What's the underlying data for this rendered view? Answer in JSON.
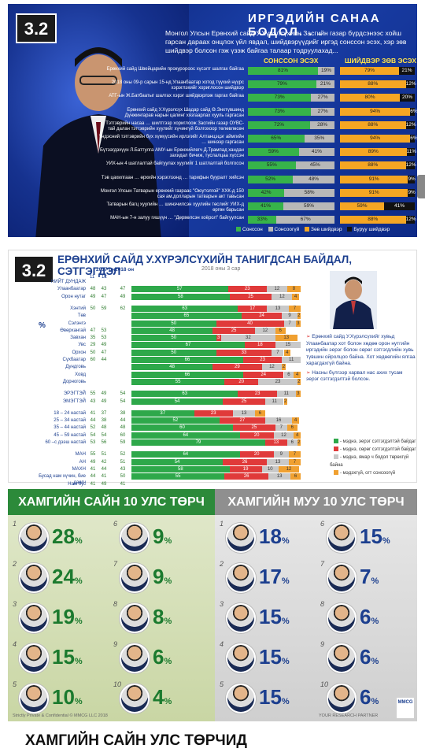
{
  "panel1": {
    "badge": "3.2",
    "title": "ИРГЭДИЙН САНАА БОДОЛ. . .",
    "description": "Монгол Улсын Ерөнхий сайд У.Хүрэлсүхийн Засгийн газар бүрдсэнээс хойш гарсан дараах онцлох үйл явдал, шийдвэрүүдийг иргэд сонссон эсэх, хэр зөв шийдвэр болсон гэж үзэж байгаа талаар тодруулахад...",
    "col_left": "СОНССОН ЭСЭХ",
    "col_right": "ШИЙДВЭР ЗӨВ ЭСЭХ",
    "legend": [
      "Сонссон",
      "Сонсоогүй",
      "Зөв шийдвэр",
      "Буруу шийдвэр"
    ],
    "colors": {
      "heard": "#37b34a",
      "notheard": "#b8b8b8",
      "right": "#f5a623",
      "wrong": "#111111"
    }
  },
  "chart_data": [
    {
      "type": "bar",
      "title": "ИРГЭДИЙН САНАА БОДОЛ. . .",
      "categories": [
        "Ерөнхий сайд Швейцарийн прокуророос хүсэлт шалгах байгаа",
        "2018 оны 09-р сарын 15-нд Улаанбаатар хотод түүхий нүүрс хэрэглэхийг хориглосон шийдвэр",
        "АТГ-ын Ж.Батбаатыг шалгах хэрэг шийдвэрлэж гаргах байгаа",
        "Ерөнхий сайд У.Хүрэлсүх Шадар сайд Ө.Энхтүвшинд Дүнжингарав нарын цалинг хязгаарлах хууль гаргасан",
        "Тэтгэврийн насаа … шилтгээр хориглоож Засгийн газар ОУВС-тай далан тэтгэврийн хуулийг хүчингүй болгохоор төлөвлөсөн",
        "Үндэсний тэтгэврийн бүх хүмүүсийн ирлэгийг Алтанцэцэг аймгийн … шинээр гаргасан",
        "Бүтээгдэхүүн Л.Баттулга АМУ-ын Ерөнхийлөгч Д.Трампад хандан захидал бичиж, туслалцаа хүссэн",
        "УИХ-ын 4 шатлалтай байгуулах хуулийг 1 шатлалтай болгосон",
        "Тэв цахилгаан … өрхийн хэрэглээнд … тарифын бууралт хийсэн",
        "Монгол Улсын Татварын ерөнхий газраас \"Оюутолгой\" ХХК-д 150 сая ам.долларын татварын акт тавьсан",
        "Татварын багц хуулийн … шинэчилсэн хуулийн төслийг УИХ-д өргөн барьсан",
        "МАН-ын 7-н залуу гишүүн … \"Дөрвөлсэн хоёрол\" байгуулсан"
      ],
      "series": [
        {
          "name": "Сонссон",
          "values": [
            81,
            79,
            73,
            73,
            72,
            65,
            59,
            55,
            52,
            42,
            41,
            33
          ]
        },
        {
          "name": "Сонсоогүй",
          "values": [
            19,
            21,
            27,
            27,
            28,
            35,
            41,
            45,
            48,
            58,
            59,
            67
          ]
        },
        {
          "name": "Зөв шийдвэр",
          "values": [
            79,
            88,
            80,
            94,
            88,
            94,
            89,
            88,
            91,
            91,
            59,
            88
          ]
        },
        {
          "name": "Буруу шийдвэр",
          "values": [
            21,
            12,
            20,
            6,
            12,
            6,
            11,
            12,
            9,
            9,
            41,
            12
          ]
        }
      ]
    },
    {
      "type": "bar",
      "title": "ЕРӨНХИЙ САЙД У.ХҮРЭЛСҮХИЙН ТАНИГДСАН БАЙДАЛ, СЭТГЭГДЭЛ",
      "subtitle": "2018 оны 3 сар",
      "ylabel": "%",
      "col_years": [
        "11",
        "12",
        "2017 он",
        "2018 он"
      ],
      "groups": [
        {
          "name": "",
          "rows": [
            {
              "label": "НИЙТ ДУНДАЖ",
              "prev": [
                "",
                ""
              ],
              "cur": "",
              "segments": []
            },
            {
              "label": "Улаанбаатар",
              "prev": [
                "48",
                "43"
              ],
              "cur": "47",
              "segments": [
                57,
                23,
                12,
                8
              ]
            },
            {
              "label": "Орон нутаг",
              "prev": [
                "49",
                "47"
              ],
              "cur": "49",
              "segments": [
                58,
                25,
                12,
                4
              ]
            }
          ]
        },
        {
          "name": "",
          "rows": [
            {
              "label": "Хэнтий",
              "prev": [
                "50",
                "59"
              ],
              "cur": "62",
              "segments": [
                63,
                17,
                13,
                7
              ]
            },
            {
              "label": "Төв",
              "prev": [
                "",
                ""
              ],
              "cur": "",
              "segments": [
                65,
                24,
                9,
                2
              ]
            },
            {
              "label": "Сэлэнгэ",
              "prev": [
                "",
                ""
              ],
              "cur": "",
              "segments": [
                50,
                40,
                7,
                3
              ]
            },
            {
              "label": "Өвөрхангай",
              "prev": [
                "47",
                "53"
              ],
              "cur": "",
              "segments": [
                48,
                25,
                12,
                6
              ]
            },
            {
              "label": "Завхан",
              "prev": [
                "35",
                "53"
              ],
              "cur": "",
              "segments": [
                50,
                3,
                32,
                13
              ]
            },
            {
              "label": "Увс",
              "prev": [
                "29",
                "49"
              ],
              "cur": "",
              "segments": [
                67,
                18,
                15,
                0
              ]
            },
            {
              "label": "Орхон",
              "prev": [
                "50",
                "47"
              ],
              "cur": "",
              "segments": [
                50,
                33,
                7,
                4
              ]
            },
            {
              "label": "Сүхбаатар",
              "prev": [
                "60",
                "44"
              ],
              "cur": "",
              "segments": [
                66,
                23,
                11,
                0
              ]
            },
            {
              "label": "Дундговь",
              "prev": [
                "",
                ""
              ],
              "cur": "",
              "segments": [
                48,
                29,
                12,
                2
              ]
            },
            {
              "label": "Ховд",
              "prev": [
                "",
                ""
              ],
              "cur": "",
              "segments": [
                66,
                24,
                6,
                4
              ]
            },
            {
              "label": "Дорноговь",
              "prev": [
                "",
                ""
              ],
              "cur": "",
              "segments": [
                55,
                20,
                23,
                2
              ]
            }
          ]
        },
        {
          "name": "",
          "rows": [
            {
              "label": "ЭРЭГТЭЙ",
              "prev": [
                "55",
                "49"
              ],
              "cur": "54",
              "segments": [
                63,
                23,
                11,
                3
              ]
            },
            {
              "label": "ЭМЭГТЭЙ",
              "prev": [
                "43",
                "49"
              ],
              "cur": "54",
              "segments": [
                54,
                25,
                11,
                2
              ]
            }
          ]
        },
        {
          "name": "",
          "rows": [
            {
              "label": "18 – 24 настай",
              "prev": [
                "41",
                "37"
              ],
              "cur": "38",
              "segments": [
                37,
                23,
                13,
                6
              ]
            },
            {
              "label": "25 – 34 настай",
              "prev": [
                "44",
                "38"
              ],
              "cur": "44",
              "segments": [
                52,
                27,
                16,
                4
              ]
            },
            {
              "label": "35 – 44 настай",
              "prev": [
                "52",
                "48"
              ],
              "cur": "48",
              "segments": [
                60,
                25,
                7,
                6
              ]
            },
            {
              "label": "45 – 59 настай",
              "prev": [
                "54",
                "54"
              ],
              "cur": "60",
              "segments": [
                64,
                20,
                12,
                4
              ]
            },
            {
              "label": "60 –с дээш настай",
              "prev": [
                "53",
                "56"
              ],
              "cur": "59",
              "segments": [
                79,
                13,
                6,
                2
              ]
            }
          ]
        },
        {
          "name": "",
          "rows": [
            {
              "label": "МАН",
              "prev": [
                "55",
                "51"
              ],
              "cur": "52",
              "segments": [
                64,
                20,
                9,
                7
              ]
            },
            {
              "label": "АН",
              "prev": [
                "49",
                "42"
              ],
              "cur": "51",
              "segments": [
                54,
                26,
                13,
                7
              ]
            },
            {
              "label": "МАХН",
              "prev": [
                "41",
                "44"
              ],
              "cur": "43",
              "segments": [
                58,
                19,
                10,
                12
              ]
            },
            {
              "label": "Бусад нам хүчин, бие даагч",
              "prev": [
                "44",
                "41"
              ],
              "cur": "50",
              "segments": [
                55,
                26,
                13,
                6
              ]
            },
            {
              "label": "Нам бус",
              "prev": [
                "41",
                "49"
              ],
              "cur": "41",
              "segments": []
            }
          ]
        }
      ],
      "legend": [
        "- мэднэ, эерэг сэтгэгдэлтэй байдаг",
        "- мэднэ, сөрөг сэтгэгдэлтэй байдаг",
        "- мэднэ, ямар ч бодол төрөхгүй байна",
        "- мэдэхгүй, огт сонсоогүй"
      ]
    },
    {
      "type": "table",
      "title_best": "ХАМГИЙН САЙН 10 УЛС ТӨРЧ",
      "title_worst": "ХАМГИЙН МУУ 10 УЛС ТӨРЧ",
      "best": [
        {
          "rank": "1",
          "value": 28
        },
        {
          "rank": "2",
          "value": 24
        },
        {
          "rank": "3",
          "value": 19
        },
        {
          "rank": "4",
          "value": 15
        },
        {
          "rank": "5",
          "value": 10
        },
        {
          "rank": "6",
          "value": 9
        },
        {
          "rank": "7",
          "value": 9
        },
        {
          "rank": "8",
          "value": 8
        },
        {
          "rank": "9",
          "value": 6
        },
        {
          "rank": "10",
          "value": 4
        }
      ],
      "worst": [
        {
          "rank": "1",
          "value": 18
        },
        {
          "rank": "2",
          "value": 17
        },
        {
          "rank": "3",
          "value": 15
        },
        {
          "rank": "4",
          "value": 15
        },
        {
          "rank": "5",
          "value": 15
        },
        {
          "rank": "6",
          "value": 15
        },
        {
          "rank": "7",
          "value": 7
        },
        {
          "rank": "8",
          "value": 6
        },
        {
          "rank": "9",
          "value": 6
        },
        {
          "rank": "10",
          "value": 6
        }
      ]
    }
  ],
  "panel2": {
    "badge": "3.2",
    "description": [
      "Ерөнхий сайд У.Хүрэлсүхийг хувьд Улаанбаатар хот болон хөдөө орон нутгийн иргэдийн эерэг болон сөрөг сэтгэгдлийн хувь түвшин ойролцоо байна. Хот хөдөөгийн ялгаа харагдахгүй байна.",
      "Насны бүлгээр харвал нас ахих тусам эерэг сэтгэгдэлтэй болсон."
    ],
    "colors": [
      "#2ea84a",
      "#e03a3a",
      "#c9c9c9",
      "#f0a030"
    ]
  },
  "panel3": {
    "footer_left": "Strictly Private & Confidential © MMCG LLC 2018",
    "footer_right": "YOUR RESEARCH PARTNER",
    "logo": "MMCG"
  },
  "bottom": {
    "title": "ХАМГИЙН САЙН УЛС ТӨРЧИД"
  },
  "percent_sign": "%"
}
